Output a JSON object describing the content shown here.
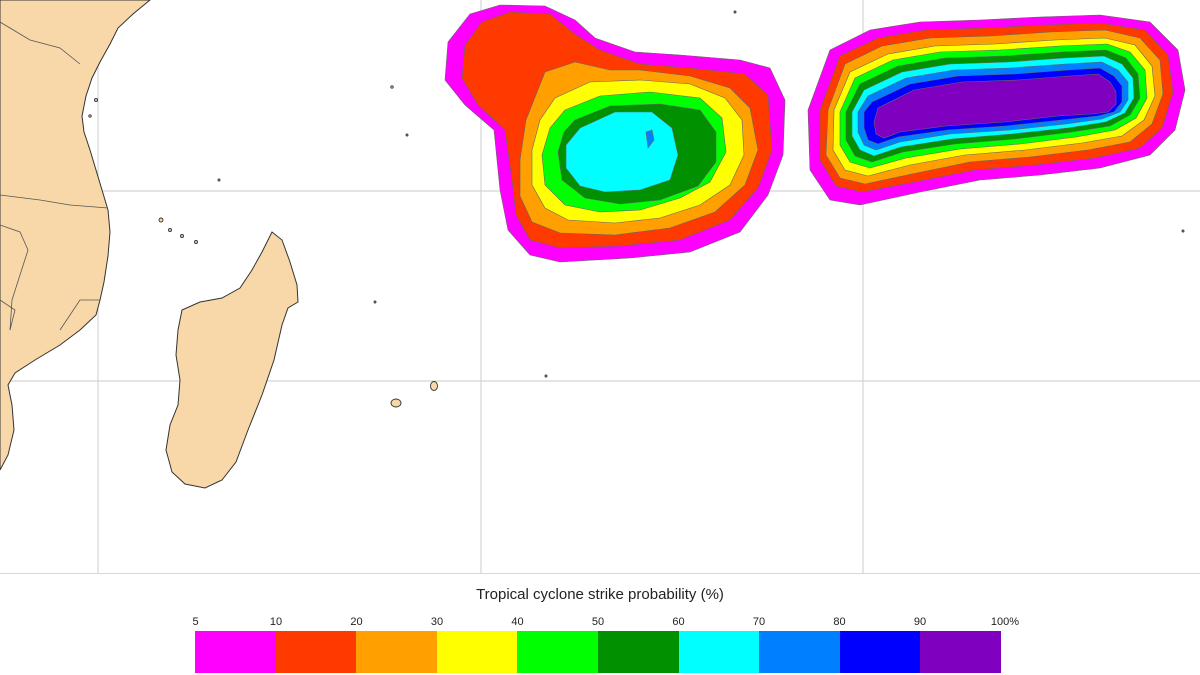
{
  "map": {
    "land_color": "#f8d8a8",
    "coast_color": "#333333",
    "grid_color": "#d4d4d4",
    "sea_color": "#ffffff"
  },
  "legend": {
    "title": "Tropical cyclone strike probability (%)",
    "ticks": [
      "5",
      "10",
      "20",
      "30",
      "40",
      "50",
      "60",
      "70",
      "80",
      "90",
      "100%"
    ],
    "colors": [
      "#ff00ff",
      "#ff3a00",
      "#ffa000",
      "#ffff00",
      "#00ff00",
      "#009000",
      "#00ffff",
      "#0080ff",
      "#0000ff",
      "#8000c0"
    ]
  }
}
